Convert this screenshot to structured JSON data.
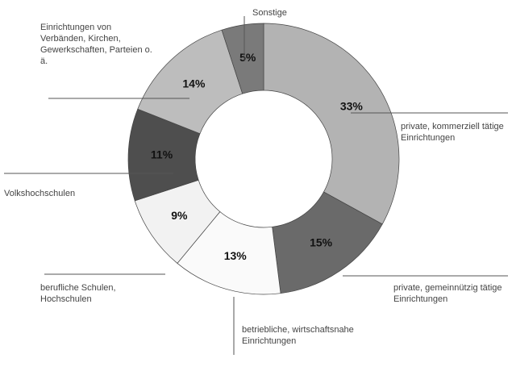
{
  "chart_data": {
    "type": "donut",
    "categories": [
      "private, kommerziell tätige Einrichtungen",
      "private, gemeinnützig tätige Einrichtungen",
      "betriebliche, wirtschaftsnahe Einrichtungen",
      "berufliche Schulen, Hochschulen",
      "Volkshochschulen",
      "Einrichtungen von Verbänden, Kirchen, Gewerkschaften, Parteien o. ä.",
      "Sonstige"
    ],
    "values": [
      33,
      15,
      13,
      9,
      11,
      14,
      5
    ],
    "value_labels": [
      "33%",
      "15%",
      "13%",
      "9%",
      "11%",
      "14%",
      "5%"
    ],
    "colors": [
      "#b3b3b3",
      "#6a6a6a",
      "#fafafa",
      "#f2f2f2",
      "#4e4e4e",
      "#bdbdbd",
      "#7a7a7a"
    ]
  }
}
